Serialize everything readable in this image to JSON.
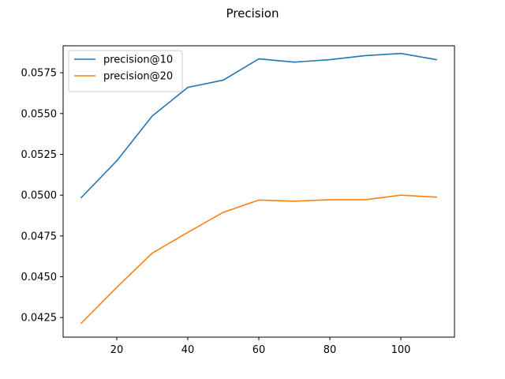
{
  "chart_data": {
    "type": "line",
    "title": "Precision",
    "xlabel": "",
    "ylabel": "",
    "xlim": [
      4.9,
      115.1
    ],
    "ylim": [
      0.0413,
      0.05915
    ],
    "xticks": [
      20,
      40,
      60,
      80,
      100
    ],
    "xtick_labels": [
      "20",
      "40",
      "60",
      "80",
      "100"
    ],
    "yticks": [
      0.0425,
      0.045,
      0.0475,
      0.05,
      0.0525,
      0.055,
      0.0575
    ],
    "ytick_labels": [
      "0.0425",
      "0.0450",
      "0.0475",
      "0.0500",
      "0.0525",
      "0.0550",
      "0.0575"
    ],
    "grid": false,
    "legend_position": "upper-left",
    "x": [
      10,
      20,
      30,
      40,
      50,
      60,
      70,
      80,
      90,
      100,
      110
    ],
    "series": [
      {
        "name": "precision@10",
        "color": "#1f77b4",
        "values": [
          0.04985,
          0.0521,
          0.05485,
          0.0566,
          0.05705,
          0.05835,
          0.05815,
          0.0583,
          0.05855,
          0.05868,
          0.0583
        ]
      },
      {
        "name": "precision@20",
        "color": "#ff7f0e",
        "values": [
          0.04215,
          0.04435,
          0.04645,
          0.04772,
          0.04895,
          0.0497,
          0.04963,
          0.04972,
          0.04972,
          0.05,
          0.04988
        ]
      }
    ]
  }
}
